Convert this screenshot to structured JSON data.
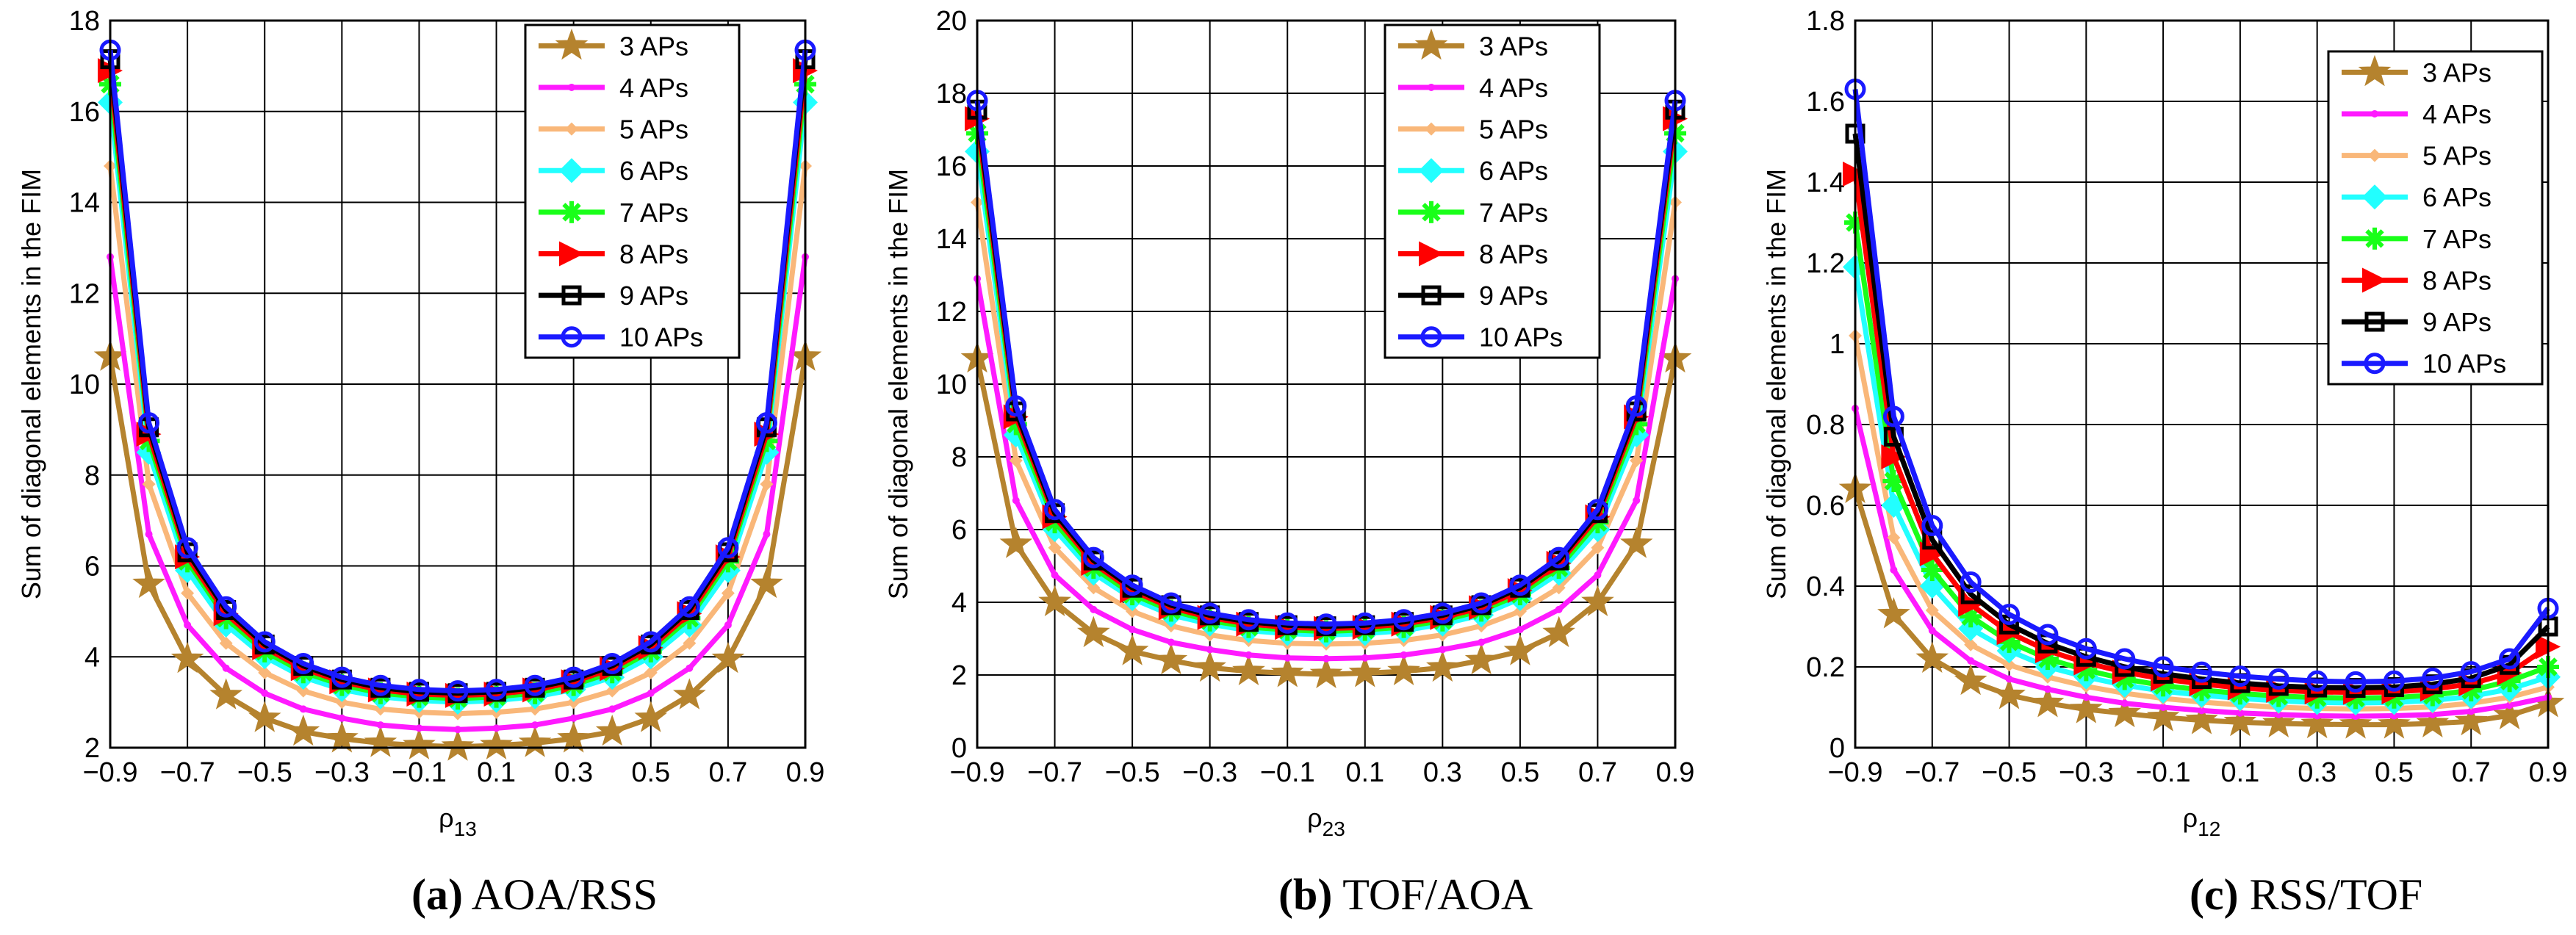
{
  "colors": {
    "3 APs": "#b5832e",
    "4 APs": "#ff1aff",
    "5 APs": "#f9b779",
    "6 APs": "#22ffff",
    "7 APs": "#19ff19",
    "8 APs": "#ff0000",
    "9 APs": "#000000",
    "10 APs": "#1a1aff"
  },
  "markers": {
    "3 APs": "star",
    "4 APs": "point",
    "5 APs": "diamond-small",
    "6 APs": "diamond",
    "7 APs": "asterisk",
    "8 APs": "triangle-right",
    "9 APs": "square",
    "10 APs": "circle"
  },
  "chart_data": [
    {
      "type": "line",
      "caption_letter": "(a)",
      "caption_text": " AOA/RSS",
      "ylabel": "Sum of diagonal elements in the FIM",
      "xlabel_base": "ρ",
      "xlabel_sub": "13",
      "xlim": [
        -0.9,
        0.9
      ],
      "ylim": [
        2,
        18
      ],
      "xticks": [
        -0.9,
        -0.7,
        -0.5,
        -0.3,
        -0.1,
        0.1,
        0.3,
        0.5,
        0.7,
        0.9
      ],
      "xtick_labels": [
        "−0.9",
        "−0.7",
        "−0.5",
        "−0.3",
        "−0.1",
        "0.1",
        "0.3",
        "0.5",
        "0.7",
        "0.9"
      ],
      "yticks": [
        2,
        4,
        6,
        8,
        10,
        12,
        14,
        16,
        18
      ],
      "ytick_labels": [
        "2",
        "4",
        "6",
        "8",
        "10",
        "12",
        "14",
        "16",
        "18"
      ],
      "grid": true,
      "legend_position": "top-right",
      "x": [
        -0.9,
        -0.8,
        -0.7,
        -0.6,
        -0.5,
        -0.4,
        -0.3,
        -0.2,
        -0.1,
        0,
        0.1,
        0.2,
        0.3,
        0.4,
        0.5,
        0.6,
        0.7,
        0.8,
        0.9
      ],
      "series": [
        {
          "name": "3 APs",
          "values": [
            10.6,
            5.6,
            3.95,
            3.15,
            2.65,
            2.35,
            2.2,
            2.1,
            2.05,
            2.02,
            2.05,
            2.1,
            2.2,
            2.35,
            2.65,
            3.15,
            3.95,
            5.6,
            10.6
          ]
        },
        {
          "name": "4 APs",
          "values": [
            12.8,
            6.7,
            4.7,
            3.75,
            3.2,
            2.85,
            2.65,
            2.5,
            2.43,
            2.4,
            2.43,
            2.5,
            2.65,
            2.85,
            3.2,
            3.75,
            4.7,
            6.7,
            12.8
          ]
        },
        {
          "name": "5 APs",
          "values": [
            14.8,
            7.8,
            5.4,
            4.3,
            3.65,
            3.25,
            3.0,
            2.85,
            2.78,
            2.75,
            2.78,
            2.85,
            3.0,
            3.25,
            3.65,
            4.3,
            5.4,
            7.8,
            14.8
          ]
        },
        {
          "name": "6 APs",
          "values": [
            16.2,
            8.5,
            5.9,
            4.7,
            4.0,
            3.55,
            3.28,
            3.12,
            3.04,
            3.0,
            3.04,
            3.12,
            3.28,
            3.55,
            4.0,
            4.7,
            5.9,
            8.5,
            16.2
          ]
        },
        {
          "name": "7 APs",
          "values": [
            16.6,
            8.75,
            6.1,
            4.85,
            4.12,
            3.66,
            3.38,
            3.2,
            3.12,
            3.08,
            3.12,
            3.2,
            3.38,
            3.66,
            4.12,
            4.85,
            6.1,
            8.75,
            16.6
          ]
        },
        {
          "name": "8 APs",
          "values": [
            16.9,
            8.9,
            6.2,
            4.95,
            4.2,
            3.74,
            3.45,
            3.27,
            3.18,
            3.15,
            3.18,
            3.27,
            3.45,
            3.74,
            4.2,
            4.95,
            6.2,
            8.9,
            16.9
          ]
        },
        {
          "name": "9 APs",
          "values": [
            17.15,
            9.05,
            6.3,
            5.03,
            4.27,
            3.8,
            3.5,
            3.32,
            3.23,
            3.2,
            3.23,
            3.32,
            3.5,
            3.8,
            4.27,
            5.03,
            6.3,
            9.05,
            17.15
          ]
        },
        {
          "name": "10 APs",
          "values": [
            17.35,
            9.15,
            6.4,
            5.1,
            4.33,
            3.85,
            3.55,
            3.37,
            3.28,
            3.25,
            3.28,
            3.37,
            3.55,
            3.85,
            4.33,
            5.1,
            6.4,
            9.15,
            17.35
          ]
        }
      ]
    },
    {
      "type": "line",
      "caption_letter": "(b)",
      "caption_text": " TOF/AOA",
      "ylabel": "Sum of diagonal elements in the FIM",
      "xlabel_base": "ρ",
      "xlabel_sub": "23",
      "xlim": [
        -0.9,
        0.9
      ],
      "ylim": [
        0,
        20
      ],
      "xticks": [
        -0.9,
        -0.7,
        -0.5,
        -0.3,
        -0.1,
        0.1,
        0.3,
        0.5,
        0.7,
        0.9
      ],
      "xtick_labels": [
        "−0.9",
        "−0.7",
        "−0.5",
        "−0.3",
        "−0.1",
        "0.1",
        "0.3",
        "0.5",
        "0.7",
        "0.9"
      ],
      "yticks": [
        0,
        2,
        4,
        6,
        8,
        10,
        12,
        14,
        16,
        18,
        20
      ],
      "ytick_labels": [
        "0",
        "2",
        "4",
        "6",
        "8",
        "10",
        "12",
        "14",
        "16",
        "18",
        "20"
      ],
      "grid": true,
      "legend_position": "top-right",
      "x": [
        -0.9,
        -0.8,
        -0.7,
        -0.6,
        -0.5,
        -0.4,
        -0.3,
        -0.2,
        -0.1,
        0,
        0.1,
        0.2,
        0.3,
        0.4,
        0.5,
        0.6,
        0.7,
        0.8,
        0.9
      ],
      "series": [
        {
          "name": "3 APs",
          "values": [
            10.7,
            5.6,
            4.0,
            3.15,
            2.65,
            2.4,
            2.2,
            2.1,
            2.05,
            2.02,
            2.05,
            2.1,
            2.2,
            2.4,
            2.65,
            3.15,
            4.0,
            5.6,
            10.7
          ]
        },
        {
          "name": "4 APs",
          "values": [
            12.9,
            6.8,
            4.75,
            3.8,
            3.25,
            2.9,
            2.7,
            2.55,
            2.47,
            2.45,
            2.47,
            2.55,
            2.7,
            2.9,
            3.25,
            3.8,
            4.75,
            6.8,
            12.9
          ]
        },
        {
          "name": "5 APs",
          "values": [
            15.0,
            7.9,
            5.5,
            4.4,
            3.75,
            3.35,
            3.1,
            2.95,
            2.87,
            2.85,
            2.87,
            2.95,
            3.1,
            3.35,
            3.75,
            4.4,
            5.5,
            7.9,
            15.0
          ]
        },
        {
          "name": "6 APs",
          "values": [
            16.4,
            8.6,
            6.0,
            4.8,
            4.1,
            3.65,
            3.4,
            3.22,
            3.14,
            3.1,
            3.14,
            3.22,
            3.4,
            3.65,
            4.1,
            4.8,
            6.0,
            8.6,
            16.4
          ]
        },
        {
          "name": "7 APs",
          "values": [
            16.9,
            8.9,
            6.2,
            4.95,
            4.22,
            3.77,
            3.5,
            3.32,
            3.24,
            3.2,
            3.24,
            3.32,
            3.5,
            3.77,
            4.22,
            4.95,
            6.2,
            8.9,
            16.9
          ]
        },
        {
          "name": "8 APs",
          "values": [
            17.3,
            9.1,
            6.35,
            5.07,
            4.32,
            3.85,
            3.58,
            3.4,
            3.31,
            3.28,
            3.31,
            3.4,
            3.58,
            3.85,
            4.32,
            5.07,
            6.35,
            9.1,
            17.3
          ]
        },
        {
          "name": "9 APs",
          "values": [
            17.55,
            9.25,
            6.45,
            5.15,
            4.4,
            3.92,
            3.64,
            3.46,
            3.37,
            3.34,
            3.37,
            3.46,
            3.64,
            3.92,
            4.4,
            5.15,
            6.45,
            9.25,
            17.55
          ]
        },
        {
          "name": "10 APs",
          "values": [
            17.8,
            9.4,
            6.55,
            5.23,
            4.47,
            3.98,
            3.7,
            3.52,
            3.43,
            3.4,
            3.43,
            3.52,
            3.7,
            3.98,
            4.47,
            5.23,
            6.55,
            9.4,
            17.8
          ]
        }
      ]
    },
    {
      "type": "line",
      "caption_letter": "(c)",
      "caption_text": " RSS/TOF",
      "ylabel": "Sum of diagonal elements in the FIM",
      "xlabel_base": "ρ",
      "xlabel_sub": "12",
      "xlim": [
        -0.9,
        0.9
      ],
      "ylim": [
        0,
        1.8
      ],
      "xticks": [
        -0.9,
        -0.7,
        -0.5,
        -0.3,
        -0.1,
        0.1,
        0.3,
        0.5,
        0.7,
        0.9
      ],
      "xtick_labels": [
        "−0.9",
        "−0.7",
        "−0.5",
        "−0.3",
        "−0.1",
        "0.1",
        "0.3",
        "0.5",
        "0.7",
        "0.9"
      ],
      "yticks": [
        0,
        0.2,
        0.4,
        0.6,
        0.8,
        1.0,
        1.2,
        1.4,
        1.6,
        1.8
      ],
      "ytick_labels": [
        "0",
        "0.2",
        "0.4",
        "0.6",
        "0.8",
        "1",
        "1.2",
        "1.4",
        "1.6",
        "1.8"
      ],
      "grid": true,
      "legend_position": "top-right",
      "x": [
        -0.9,
        -0.8,
        -0.7,
        -0.6,
        -0.5,
        -0.4,
        -0.3,
        -0.2,
        -0.1,
        0,
        0.1,
        0.2,
        0.3,
        0.4,
        0.5,
        0.6,
        0.7,
        0.8,
        0.9
      ],
      "series": [
        {
          "name": "3 APs",
          "values": [
            0.64,
            0.33,
            0.22,
            0.165,
            0.13,
            0.11,
            0.095,
            0.085,
            0.075,
            0.068,
            0.063,
            0.06,
            0.058,
            0.057,
            0.057,
            0.06,
            0.065,
            0.08,
            0.11
          ]
        },
        {
          "name": "4 APs",
          "values": [
            0.84,
            0.44,
            0.29,
            0.215,
            0.17,
            0.145,
            0.125,
            0.11,
            0.1,
            0.092,
            0.086,
            0.082,
            0.079,
            0.078,
            0.079,
            0.082,
            0.09,
            0.105,
            0.125
          ]
        },
        {
          "name": "5 APs",
          "values": [
            1.02,
            0.52,
            0.34,
            0.255,
            0.205,
            0.175,
            0.152,
            0.135,
            0.122,
            0.113,
            0.106,
            0.1,
            0.097,
            0.096,
            0.097,
            0.101,
            0.11,
            0.125,
            0.15
          ]
        },
        {
          "name": "6 APs",
          "values": [
            1.19,
            0.6,
            0.4,
            0.295,
            0.24,
            0.2,
            0.175,
            0.155,
            0.14,
            0.13,
            0.122,
            0.116,
            0.112,
            0.111,
            0.112,
            0.117,
            0.127,
            0.145,
            0.175
          ]
        },
        {
          "name": "7 APs",
          "values": [
            1.3,
            0.66,
            0.44,
            0.325,
            0.262,
            0.22,
            0.192,
            0.17,
            0.154,
            0.143,
            0.134,
            0.128,
            0.124,
            0.123,
            0.124,
            0.13,
            0.142,
            0.165,
            0.2
          ]
        },
        {
          "name": "8 APs",
          "values": [
            1.42,
            0.72,
            0.48,
            0.355,
            0.285,
            0.24,
            0.21,
            0.187,
            0.17,
            0.158,
            0.148,
            0.142,
            0.138,
            0.137,
            0.138,
            0.145,
            0.158,
            0.185,
            0.25
          ]
        },
        {
          "name": "9 APs",
          "values": [
            1.52,
            0.77,
            0.515,
            0.38,
            0.305,
            0.258,
            0.225,
            0.2,
            0.183,
            0.17,
            0.16,
            0.153,
            0.149,
            0.148,
            0.15,
            0.157,
            0.172,
            0.205,
            0.3
          ]
        },
        {
          "name": "10 APs",
          "values": [
            1.63,
            0.82,
            0.55,
            0.41,
            0.33,
            0.28,
            0.245,
            0.22,
            0.2,
            0.187,
            0.177,
            0.17,
            0.165,
            0.163,
            0.165,
            0.172,
            0.188,
            0.22,
            0.345
          ]
        }
      ]
    }
  ]
}
